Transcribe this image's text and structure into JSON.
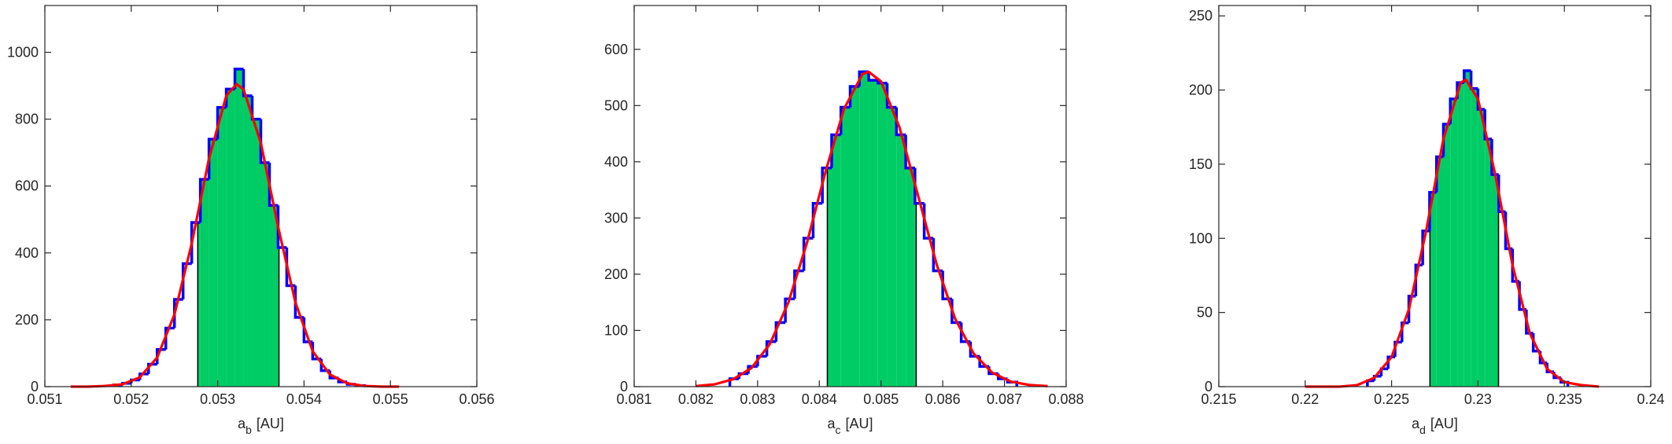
{
  "chart_data": [
    {
      "type": "histogram",
      "bins": [
        0.0518,
        0.0519,
        0.052,
        0.0521,
        0.0522,
        0.0523,
        0.0524,
        0.0525,
        0.0526,
        0.0527,
        0.0528,
        0.0529,
        0.053,
        0.0531,
        0.0532,
        0.0533,
        0.0534,
        0.0535,
        0.0536,
        0.0537,
        0.0538,
        0.0539,
        0.054,
        0.0541,
        0.0542,
        0.0543,
        0.0544,
        0.0545,
        0.0546,
        0.0547
      ],
      "counts": [
        5,
        10,
        20,
        38,
        67,
        111,
        175,
        261,
        368,
        491,
        620,
        740,
        835,
        890,
        950,
        870,
        800,
        670,
        542,
        416,
        302,
        207,
        134,
        83,
        48,
        26,
        14,
        7,
        3
      ],
      "color": "#0000ff",
      "shade": {
        "range": [
          0.05277,
          0.05371
        ],
        "color": "#00cc66"
      },
      "fit": {
        "x": [
          0.0513,
          0.0515,
          0.0517,
          0.0519,
          0.0521,
          0.0523,
          0.0525,
          0.0527,
          0.0529,
          0.0531,
          0.05322,
          0.0533,
          0.0535,
          0.0537,
          0.0539,
          0.0541,
          0.0543,
          0.0545,
          0.0547,
          0.0549,
          0.0551
        ],
        "values": [
          0,
          0,
          2,
          7,
          28,
          87,
          216,
          428,
          682,
          870,
          905,
          889,
          729,
          478,
          252,
          106,
          36,
          10,
          2,
          0,
          0
        ],
        "color": "#ff0000"
      },
      "xlim": [
        0.051,
        0.056
      ],
      "xticks": [
        0.051,
        0.052,
        0.053,
        0.054,
        0.055,
        0.056
      ],
      "ylim": [
        0,
        1140
      ],
      "yticks": [
        0,
        200,
        400,
        600,
        800,
        1000
      ],
      "xlabel": {
        "main": "a",
        "sub": "b",
        "rest": "[AU]"
      }
    },
    {
      "type": "histogram",
      "bins": [
        0.08255,
        0.0827,
        0.08285,
        0.083,
        0.08315,
        0.0833,
        0.08345,
        0.0836,
        0.08375,
        0.0839,
        0.08405,
        0.0842,
        0.08435,
        0.0845,
        0.08465,
        0.0848,
        0.08495,
        0.0851,
        0.08525,
        0.0854,
        0.08555,
        0.0857,
        0.08585,
        0.086,
        0.08615,
        0.0863,
        0.08645,
        0.0866,
        0.08675,
        0.0869,
        0.08705,
        0.0872
      ],
      "counts": [
        14,
        23,
        36,
        54,
        80,
        114,
        156,
        206,
        264,
        326,
        389,
        448,
        497,
        534,
        560,
        545,
        540,
        497,
        448,
        389,
        326,
        264,
        206,
        156,
        114,
        80,
        54,
        36,
        23,
        14,
        8
      ],
      "color": "#0000ff",
      "shade": {
        "range": [
          0.08413,
          0.08557
        ],
        "color": "#00cc66"
      },
      "fit": {
        "x": [
          0.082,
          0.0823,
          0.0826,
          0.0829,
          0.0832,
          0.0835,
          0.0838,
          0.0841,
          0.0844,
          0.0847,
          0.0848,
          0.085,
          0.0853,
          0.0856,
          0.0859,
          0.0862,
          0.0865,
          0.0868,
          0.0871,
          0.0874,
          0.0877
        ],
        "values": [
          1,
          4,
          13,
          33,
          76,
          150,
          256,
          382,
          494,
          556,
          560,
          543,
          461,
          340,
          218,
          121,
          59,
          25,
          9,
          3,
          1
        ],
        "color": "#ff0000"
      },
      "xlim": [
        0.081,
        0.088
      ],
      "xticks": [
        0.081,
        0.082,
        0.083,
        0.084,
        0.085,
        0.086,
        0.087,
        0.088
      ],
      "ylim": [
        0,
        678
      ],
      "yticks": [
        0,
        100,
        200,
        300,
        400,
        500,
        600
      ],
      "xlabel": {
        "main": "a",
        "sub": "c",
        "rest": "[AU]"
      }
    },
    {
      "type": "histogram",
      "bins": [
        0.2236,
        0.224,
        0.2244,
        0.2248,
        0.2252,
        0.2256,
        0.226,
        0.2264,
        0.2268,
        0.2272,
        0.2276,
        0.228,
        0.2284,
        0.2288,
        0.2292,
        0.2296,
        0.23,
        0.2304,
        0.2308,
        0.2312,
        0.2316,
        0.232,
        0.2324,
        0.2328,
        0.2332,
        0.2336,
        0.234,
        0.2344,
        0.2348,
        0.2352
      ],
      "counts": [
        4,
        7,
        12,
        20,
        30,
        43,
        61,
        82,
        105,
        131,
        155,
        177,
        194,
        205,
        213,
        201,
        187,
        167,
        143,
        118,
        93,
        71,
        52,
        36,
        24,
        16,
        10,
        6,
        3
      ],
      "color": "#0000ff",
      "shade": {
        "range": [
          0.22722,
          0.23119
        ],
        "color": "#00cc66"
      },
      "fit": {
        "x": [
          0.22,
          0.221,
          0.222,
          0.223,
          0.224,
          0.225,
          0.226,
          0.227,
          0.228,
          0.229,
          0.2293,
          0.23,
          0.231,
          0.232,
          0.233,
          0.234,
          0.235,
          0.236,
          0.237
        ],
        "values": [
          0,
          0,
          0,
          1,
          6,
          20,
          52,
          105,
          167,
          205,
          207,
          194,
          143,
          82,
          36,
          12,
          3,
          1,
          0
        ],
        "color": "#ff0000"
      },
      "xlim": [
        0.215,
        0.24
      ],
      "xticks": [
        0.215,
        0.22,
        0.225,
        0.23,
        0.235,
        0.24
      ],
      "ylim": [
        0,
        257
      ],
      "yticks": [
        0,
        50,
        100,
        150,
        200,
        250
      ],
      "xlabel": {
        "main": "a",
        "sub": "d",
        "rest": "[AU]"
      }
    }
  ]
}
